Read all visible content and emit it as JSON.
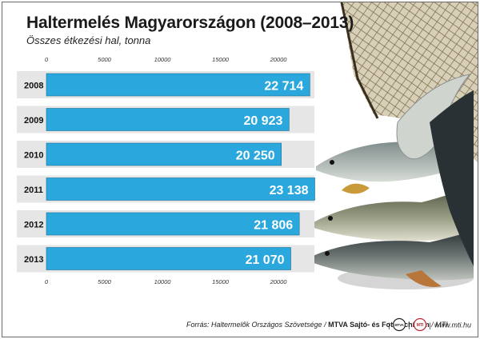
{
  "header": {
    "title": "Haltermelés Magyarországon (2008–2013)",
    "subtitle": "Összes étkezési hal, tonna"
  },
  "footer": {
    "source_prefix": "Forrás: Haltermelők Országos Szövetsége /",
    "source_bold": "MTVA Sajtó- és Fotóarchívum",
    "source_suffix": "/ MTI",
    "sep1": "|",
    "sep2": "|",
    "sep3": "|",
    "logo1": "MTVA",
    "logo2": "MTI",
    "website": "www.mti.hu"
  },
  "chart_data": {
    "type": "bar",
    "orientation": "horizontal",
    "title": "Haltermelés Magyarországon (2008–2013)",
    "subtitle": "Összes étkezési hal, tonna",
    "categories": [
      "2008",
      "2009",
      "2010",
      "2011",
      "2012",
      "2013"
    ],
    "values": [
      22714,
      20923,
      20250,
      23138,
      21806,
      21070
    ],
    "value_labels": [
      "22 714",
      "20 923",
      "20 250",
      "23 138",
      "21 806",
      "21 070"
    ],
    "xlim": [
      0,
      25000
    ],
    "xticks": [
      0,
      5000,
      10000,
      15000,
      20000
    ],
    "bar_color": "#2aa7dd",
    "row_band_color": "#e6e6e6",
    "grid": false
  }
}
